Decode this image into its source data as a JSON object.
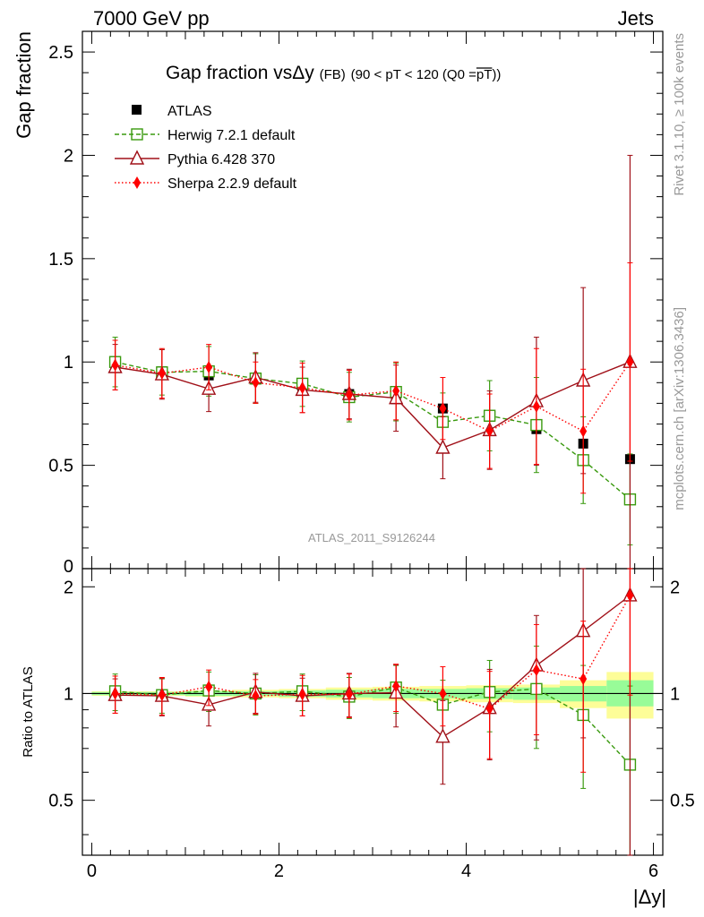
{
  "header": {
    "left": "7000 GeV pp",
    "right": "Jets"
  },
  "side": {
    "rivet": "Rivet 3.1.10, ≥ 100k events",
    "mcplots": "mcplots.cern.ch [arXiv:1306.3436]"
  },
  "colors": {
    "atlas": "#000000",
    "herwig": "#3a9a0f",
    "pythia": "#a01018",
    "sherpa": "#ff0000",
    "band_yellow": "#fdfd98",
    "band_green": "#98fc98"
  },
  "chart_data": [
    {
      "type": "scatter",
      "title": "Gap fraction vsΔy",
      "title_sub": "(FB)",
      "title_range": "(90 < pT < 120 (Q0 =",
      "title_q0": "pT",
      "title_end": "))",
      "ylabel": "Gap fraction",
      "xlabel": "|Δy|",
      "xlim": [
        -0.1,
        6.1
      ],
      "ylim": [
        0,
        2.6
      ],
      "yticks": [
        0.5,
        1,
        1.5,
        2,
        2.5
      ],
      "ytick_labels": [
        "0.5",
        "1",
        "1.5",
        "2",
        "2.5"
      ],
      "ytick_zero_label": "0",
      "watermark": "ATLAS_2011_S9126244",
      "x": [
        0.25,
        0.75,
        1.25,
        1.75,
        2.25,
        2.75,
        3.25,
        3.75,
        4.25,
        4.75,
        5.25,
        5.75
      ],
      "series": [
        {
          "name": "ATLAS",
          "key": "atlas",
          "values": [
            0.985,
            0.955,
            0.935,
            0.915,
            0.88,
            0.845,
            0.82,
            0.775,
            0.735,
            0.675,
            0.605,
            0.53
          ],
          "err": [
            0.02,
            0.02,
            0.02,
            0.02,
            0.02,
            0.02,
            0.02,
            0.02,
            0.02,
            0.02,
            0.02,
            0.02
          ]
        },
        {
          "name": "Herwig 7.2.1 default",
          "key": "herwig",
          "values": [
            1.0,
            0.95,
            0.955,
            0.92,
            0.895,
            0.83,
            0.855,
            0.71,
            0.74,
            0.695,
            0.525,
            0.335
          ],
          "err": [
            0.12,
            0.11,
            0.12,
            0.12,
            0.11,
            0.12,
            0.14,
            0.14,
            0.17,
            0.23,
            0.21,
            0.22
          ]
        },
        {
          "name": "Pythia 6.428 370",
          "key": "pythia",
          "values": [
            0.975,
            0.94,
            0.87,
            0.925,
            0.865,
            0.845,
            0.825,
            0.585,
            0.67,
            0.81,
            0.91,
            1.0
          ],
          "err": [
            0.11,
            0.12,
            0.11,
            0.12,
            0.11,
            0.12,
            0.16,
            0.15,
            0.19,
            0.31,
            0.45,
            1.0
          ]
        },
        {
          "name": "Sherpa 2.2.9 default",
          "key": "sherpa",
          "values": [
            0.985,
            0.945,
            0.975,
            0.9,
            0.875,
            0.84,
            0.86,
            0.775,
            0.665,
            0.785,
            0.665,
            1.0
          ],
          "err": [
            0.12,
            0.12,
            0.11,
            0.1,
            0.12,
            0.12,
            0.14,
            0.15,
            0.18,
            0.28,
            0.3,
            0.48
          ]
        }
      ]
    },
    {
      "type": "scatter",
      "ylabel": "Ratio to ATLAS",
      "xlabel": "|Δy|",
      "xlim": [
        -0.1,
        6.1
      ],
      "ylim": [
        0.35,
        2.25
      ],
      "yticks": [
        0.5,
        1,
        2
      ],
      "ytick_labels": [
        "0.5",
        "1",
        "2"
      ],
      "xticks": [
        0,
        2,
        4,
        6
      ],
      "xtick_labels": [
        "0",
        "2",
        "4",
        "6"
      ],
      "bands": {
        "edges": [
          0,
          0.5,
          1,
          1.5,
          2,
          2.5,
          3,
          3.5,
          4,
          4.5,
          5,
          5.5,
          6
        ],
        "yellow": [
          [
            0.985,
            1.015
          ],
          [
            0.985,
            1.015
          ],
          [
            0.98,
            1.02
          ],
          [
            0.975,
            1.025
          ],
          [
            0.97,
            1.03
          ],
          [
            0.96,
            1.04
          ],
          [
            0.955,
            1.045
          ],
          [
            0.95,
            1.05
          ],
          [
            0.945,
            1.055
          ],
          [
            0.94,
            1.06
          ],
          [
            0.91,
            1.09
          ],
          [
            0.85,
            1.15
          ]
        ],
        "green": [
          [
            0.99,
            1.01
          ],
          [
            0.99,
            1.01
          ],
          [
            0.985,
            1.015
          ],
          [
            0.985,
            1.015
          ],
          [
            0.98,
            1.02
          ],
          [
            0.975,
            1.025
          ],
          [
            0.97,
            1.03
          ],
          [
            0.97,
            1.03
          ],
          [
            0.965,
            1.035
          ],
          [
            0.96,
            1.04
          ],
          [
            0.95,
            1.05
          ],
          [
            0.92,
            1.09
          ]
        ]
      },
      "x": [
        0.25,
        0.75,
        1.25,
        1.75,
        2.25,
        2.75,
        3.25,
        3.75,
        4.25,
        4.75,
        5.25,
        5.75
      ],
      "series": [
        {
          "name": "Herwig 7.2.1 default",
          "key": "herwig",
          "values": [
            1.015,
            0.99,
            1.02,
            1.0,
            1.015,
            0.98,
            1.04,
            0.93,
            1.01,
            1.03,
            0.87,
            0.63
          ],
          "err": [
            0.12,
            0.11,
            0.13,
            0.13,
            0.12,
            0.13,
            0.16,
            0.16,
            0.23,
            0.33,
            0.33,
            0.42
          ]
        },
        {
          "name": "Pythia 6.428 370",
          "key": "pythia",
          "values": [
            0.99,
            0.985,
            0.93,
            1.01,
            0.985,
            1.0,
            1.005,
            0.755,
            0.91,
            1.2,
            1.5,
            1.89
          ],
          "err": [
            0.11,
            0.12,
            0.12,
            0.13,
            0.12,
            0.14,
            0.2,
            0.2,
            0.26,
            0.46,
            0.75,
            1.9
          ]
        },
        {
          "name": "Sherpa 2.2.9 default",
          "key": "sherpa",
          "values": [
            1.0,
            0.99,
            1.045,
            0.985,
            0.995,
            0.995,
            1.05,
            1.0,
            0.905,
            1.165,
            1.1,
            1.89
          ],
          "err": [
            0.12,
            0.12,
            0.12,
            0.11,
            0.13,
            0.14,
            0.16,
            0.19,
            0.25,
            0.4,
            0.5,
            0.9
          ]
        }
      ]
    }
  ]
}
